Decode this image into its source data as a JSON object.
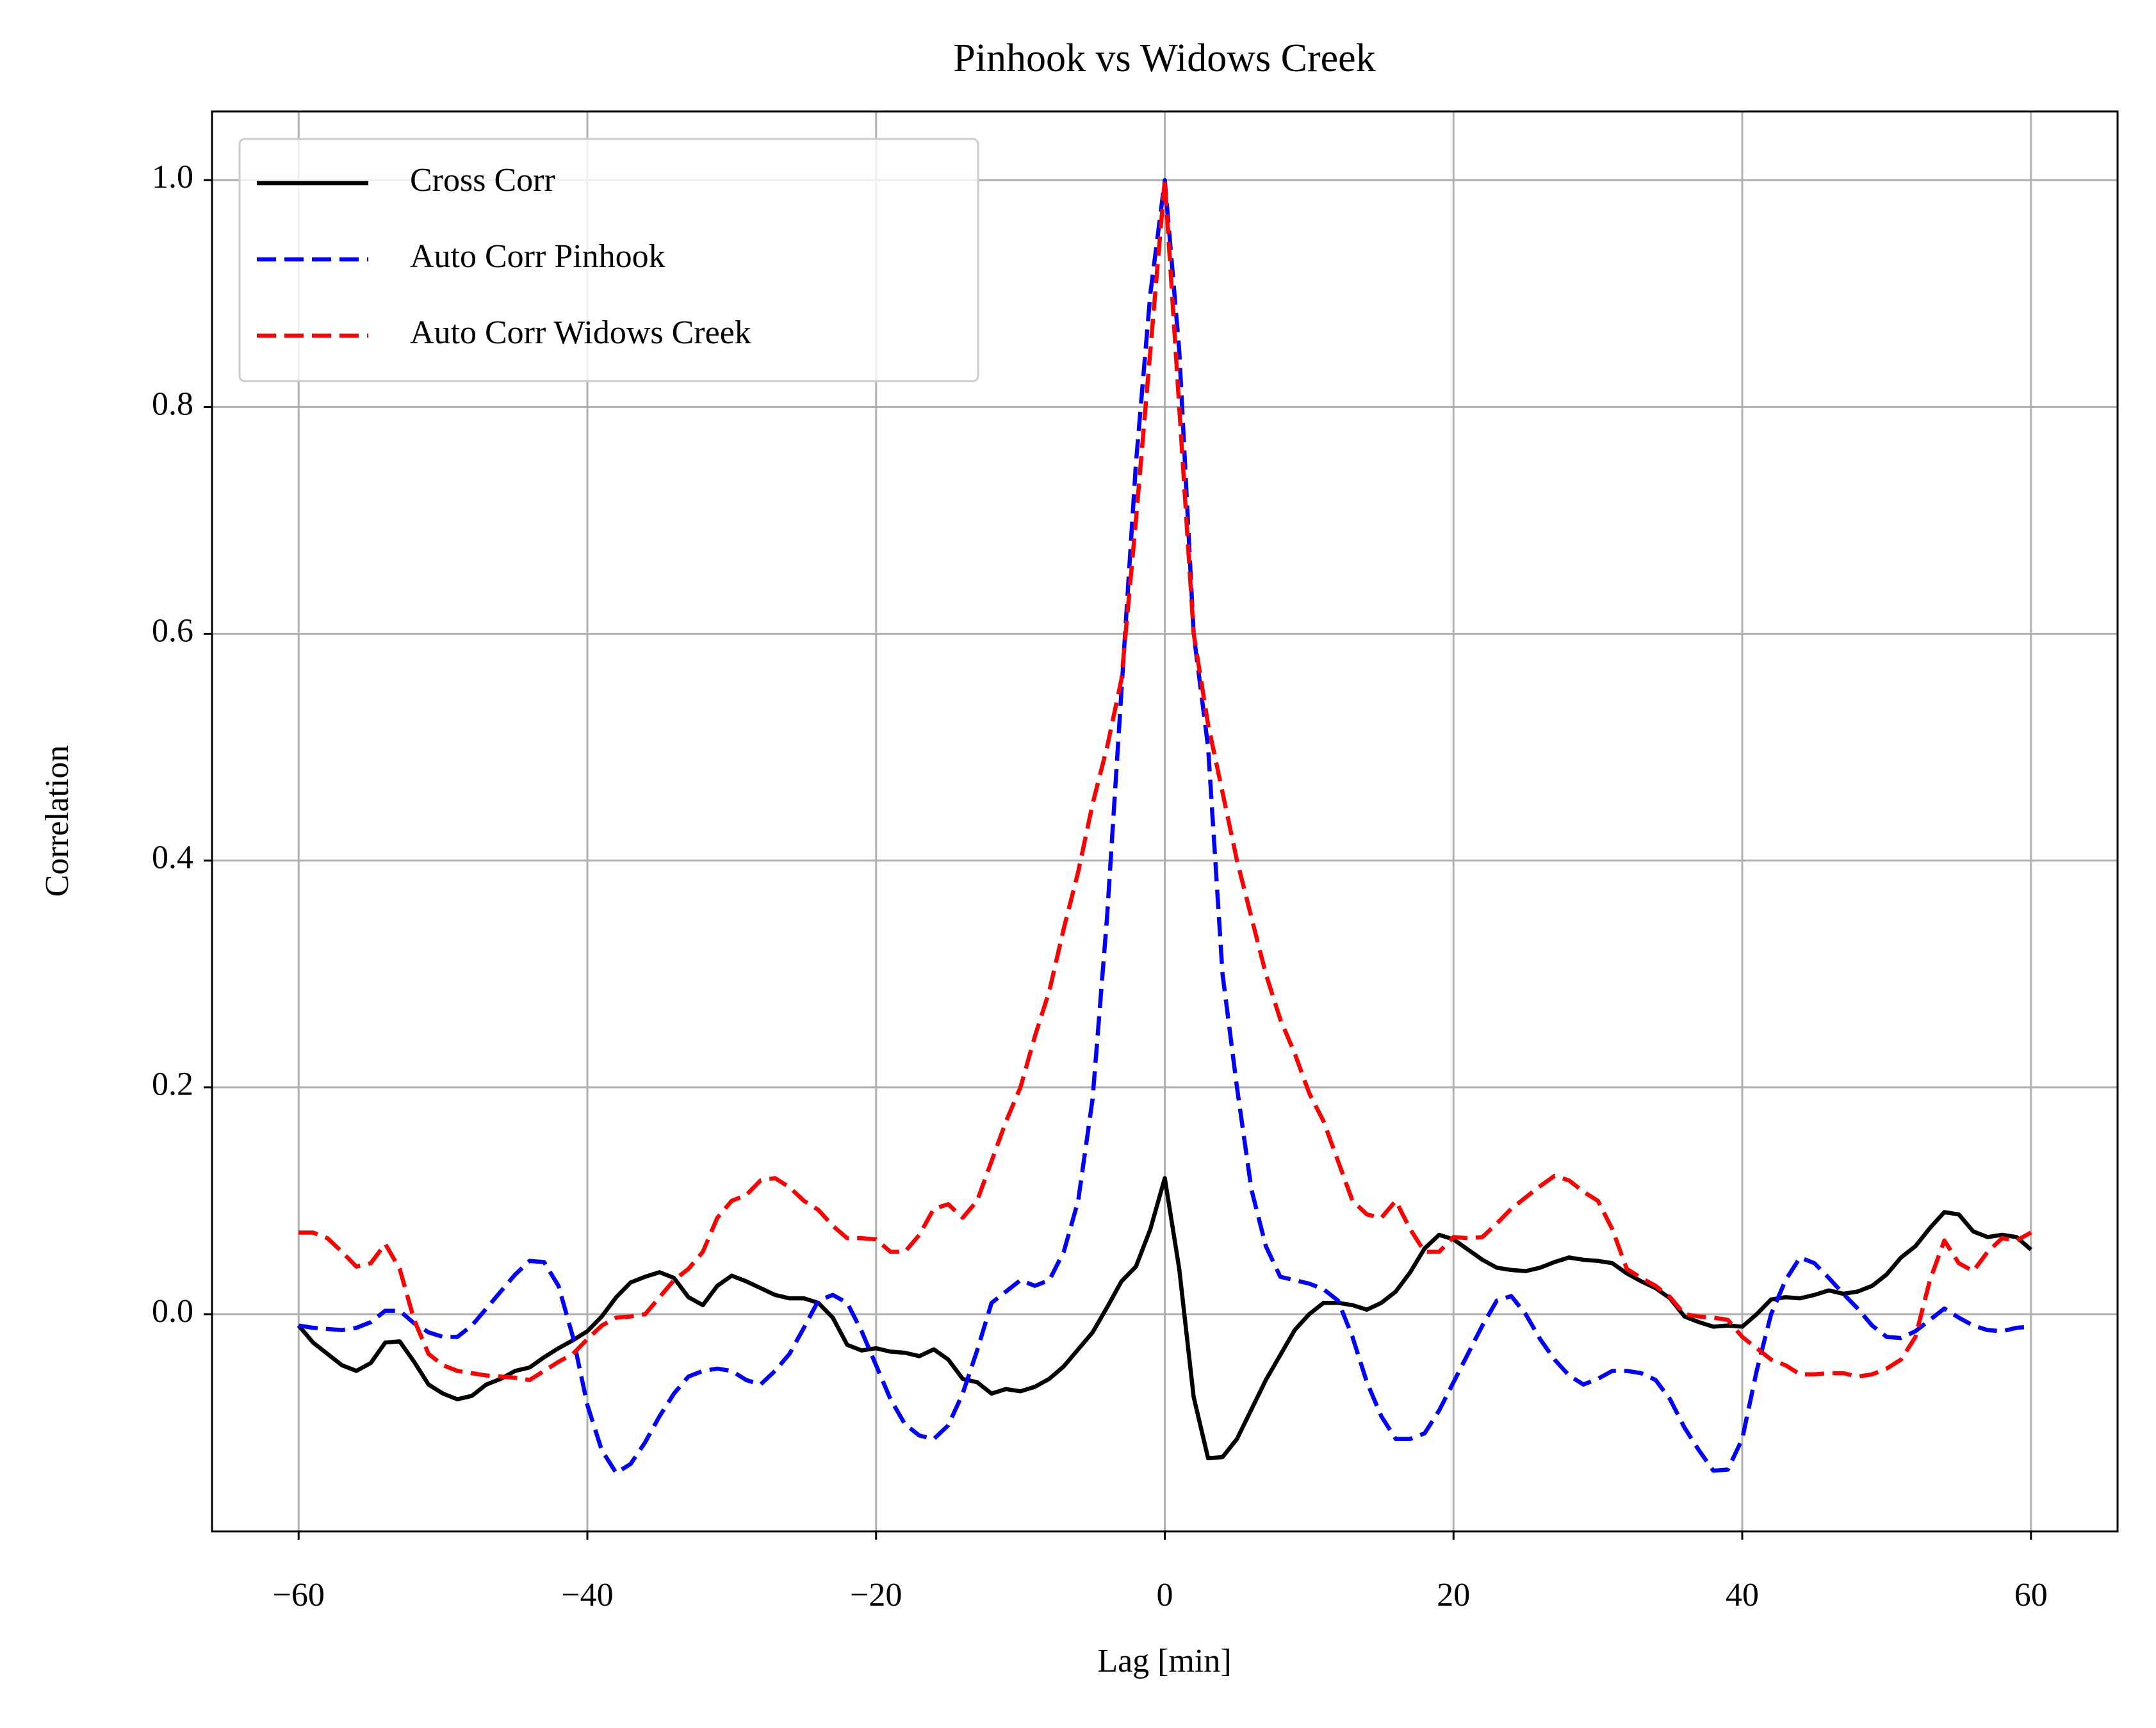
{
  "chart_data": {
    "type": "line",
    "title": "Pinhook vs Widows Creek",
    "x_label": "Lag [min]",
    "y_label": "Correlation",
    "x": [
      -60,
      -59,
      -58,
      -57,
      -56,
      -55,
      -54,
      -53,
      -52,
      -51,
      -50,
      -49,
      -48,
      -47,
      -46,
      -45,
      -44,
      -43,
      -42,
      -41,
      -40,
      -39,
      -38,
      -37,
      -36,
      -35,
      -34,
      -33,
      -32,
      -31,
      -30,
      -29,
      -28,
      -27,
      -26,
      -25,
      -24,
      -23,
      -22,
      -21,
      -20,
      -19,
      -18,
      -17,
      -16,
      -15,
      -14,
      -13,
      -12,
      -11,
      -10,
      -9,
      -8,
      -7,
      -6,
      -5,
      -4,
      -3,
      -2,
      -1,
      0,
      1,
      2,
      3,
      4,
      5,
      6,
      7,
      8,
      9,
      10,
      11,
      12,
      13,
      14,
      15,
      16,
      17,
      18,
      19,
      20,
      21,
      22,
      23,
      24,
      25,
      26,
      27,
      28,
      29,
      30,
      31,
      32,
      33,
      34,
      35,
      36,
      37,
      38,
      39,
      40,
      41,
      42,
      43,
      44,
      45,
      46,
      47,
      48,
      49,
      50,
      51,
      52,
      53,
      54,
      55,
      56,
      57,
      58,
      59,
      60
    ],
    "series": [
      {
        "name": "Cross Corr",
        "color": "#000000",
        "linestyle": "solid",
        "values": [
          -0.01,
          -0.025,
          -0.035,
          -0.045,
          -0.05,
          -0.043,
          -0.025,
          -0.024,
          -0.042,
          -0.062,
          -0.07,
          -0.075,
          -0.072,
          -0.062,
          -0.057,
          -0.05,
          -0.047,
          -0.038,
          -0.03,
          -0.023,
          -0.015,
          -0.002,
          0.015,
          0.028,
          0.033,
          0.037,
          0.032,
          0.015,
          0.008,
          0.025,
          0.034,
          0.029,
          0.023,
          0.017,
          0.014,
          0.014,
          0.01,
          -0.003,
          -0.027,
          -0.032,
          -0.03,
          -0.033,
          -0.034,
          -0.037,
          -0.031,
          -0.04,
          -0.057,
          -0.06,
          -0.07,
          -0.066,
          -0.068,
          -0.064,
          -0.057,
          -0.046,
          -0.031,
          -0.016,
          0.006,
          0.029,
          0.042,
          0.075,
          0.12,
          0.04,
          -0.073,
          -0.127,
          -0.126,
          -0.11,
          -0.084,
          -0.058,
          -0.036,
          -0.014,
          0.0,
          0.01,
          0.01,
          0.008,
          0.004,
          0.01,
          0.02,
          0.037,
          0.058,
          0.07,
          0.066,
          0.057,
          0.048,
          0.041,
          0.039,
          0.038,
          0.041,
          0.046,
          0.05,
          0.048,
          0.047,
          0.045,
          0.036,
          0.029,
          0.023,
          0.014,
          -0.002,
          -0.007,
          -0.011,
          -0.01,
          -0.011,
          0.0,
          0.013,
          0.015,
          0.014,
          0.017,
          0.021,
          0.018,
          0.02,
          0.025,
          0.035,
          0.05,
          0.06,
          0.076,
          0.09,
          0.088,
          0.073,
          0.068,
          0.07,
          0.068,
          0.057
        ]
      },
      {
        "name": "Auto Corr Pinhook",
        "color": "#0000ff",
        "linestyle": "dashed",
        "values": [
          -0.01,
          -0.012,
          -0.013,
          -0.014,
          -0.012,
          -0.007,
          0.003,
          0.003,
          -0.008,
          -0.016,
          -0.02,
          -0.02,
          -0.01,
          0.005,
          0.02,
          0.035,
          0.047,
          0.046,
          0.025,
          -0.02,
          -0.08,
          -0.12,
          -0.14,
          -0.132,
          -0.113,
          -0.09,
          -0.07,
          -0.055,
          -0.05,
          -0.048,
          -0.05,
          -0.058,
          -0.062,
          -0.05,
          -0.035,
          -0.012,
          0.012,
          0.017,
          0.01,
          -0.015,
          -0.045,
          -0.075,
          -0.097,
          -0.107,
          -0.11,
          -0.098,
          -0.07,
          -0.032,
          0.01,
          0.02,
          0.03,
          0.025,
          0.03,
          0.055,
          0.1,
          0.19,
          0.35,
          0.55,
          0.75,
          0.9,
          1.0,
          0.85,
          0.6,
          0.5,
          0.3,
          0.2,
          0.11,
          0.06,
          0.033,
          0.03,
          0.027,
          0.022,
          0.012,
          -0.02,
          -0.06,
          -0.09,
          -0.11,
          -0.11,
          -0.105,
          -0.085,
          -0.06,
          -0.035,
          -0.01,
          0.012,
          0.016,
          0.0,
          -0.022,
          -0.04,
          -0.054,
          -0.062,
          -0.057,
          -0.05,
          -0.05,
          -0.052,
          -0.058,
          -0.075,
          -0.1,
          -0.12,
          -0.138,
          -0.137,
          -0.11,
          -0.05,
          0.0,
          0.03,
          0.05,
          0.045,
          0.032,
          0.018,
          0.005,
          -0.01,
          -0.02,
          -0.021,
          -0.015,
          -0.005,
          0.005,
          -0.003,
          -0.01,
          -0.014,
          -0.015,
          -0.012,
          -0.011
        ]
      },
      {
        "name": "Auto Corr Widows Creek",
        "color": "#ff0000",
        "linestyle": "dashed",
        "values": [
          0.072,
          0.072,
          0.067,
          0.055,
          0.042,
          0.045,
          0.062,
          0.04,
          -0.005,
          -0.035,
          -0.045,
          -0.05,
          -0.052,
          -0.054,
          -0.055,
          -0.056,
          -0.058,
          -0.05,
          -0.042,
          -0.035,
          -0.022,
          -0.01,
          -0.003,
          -0.002,
          0.0,
          0.015,
          0.03,
          0.04,
          0.055,
          0.085,
          0.1,
          0.105,
          0.118,
          0.12,
          0.112,
          0.1,
          0.092,
          0.078,
          0.067,
          0.067,
          0.066,
          0.055,
          0.055,
          0.07,
          0.093,
          0.097,
          0.085,
          0.1,
          0.135,
          0.17,
          0.2,
          0.245,
          0.285,
          0.34,
          0.39,
          0.45,
          0.5,
          0.56,
          0.7,
          0.85,
          1.0,
          0.8,
          0.6,
          0.52,
          0.46,
          0.4,
          0.35,
          0.3,
          0.26,
          0.23,
          0.195,
          0.17,
          0.135,
          0.1,
          0.088,
          0.085,
          0.1,
          0.075,
          0.055,
          0.055,
          0.068,
          0.067,
          0.068,
          0.08,
          0.093,
          0.103,
          0.113,
          0.122,
          0.118,
          0.108,
          0.1,
          0.075,
          0.04,
          0.032,
          0.025,
          0.015,
          0.0,
          -0.002,
          -0.003,
          -0.005,
          -0.02,
          -0.03,
          -0.04,
          -0.045,
          -0.053,
          -0.053,
          -0.052,
          -0.052,
          -0.055,
          -0.053,
          -0.048,
          -0.04,
          -0.02,
          0.03,
          0.065,
          0.045,
          0.038,
          0.055,
          0.067,
          0.065,
          0.072
        ]
      }
    ],
    "xlim": [
      -66,
      66
    ],
    "ylim": [
      -0.1915,
      1.0606
    ],
    "xticks": [
      {
        "value": -60,
        "label": "−60"
      },
      {
        "value": -40,
        "label": "−40"
      },
      {
        "value": -20,
        "label": "−20"
      },
      0,
      20,
      40,
      60
    ],
    "yticks": [
      {
        "value": 0,
        "label": "0.0"
      },
      0.2,
      0.4,
      0.6,
      0.8,
      {
        "value": 1,
        "label": "1.0"
      }
    ],
    "grid": true,
    "legend": "upper left"
  }
}
